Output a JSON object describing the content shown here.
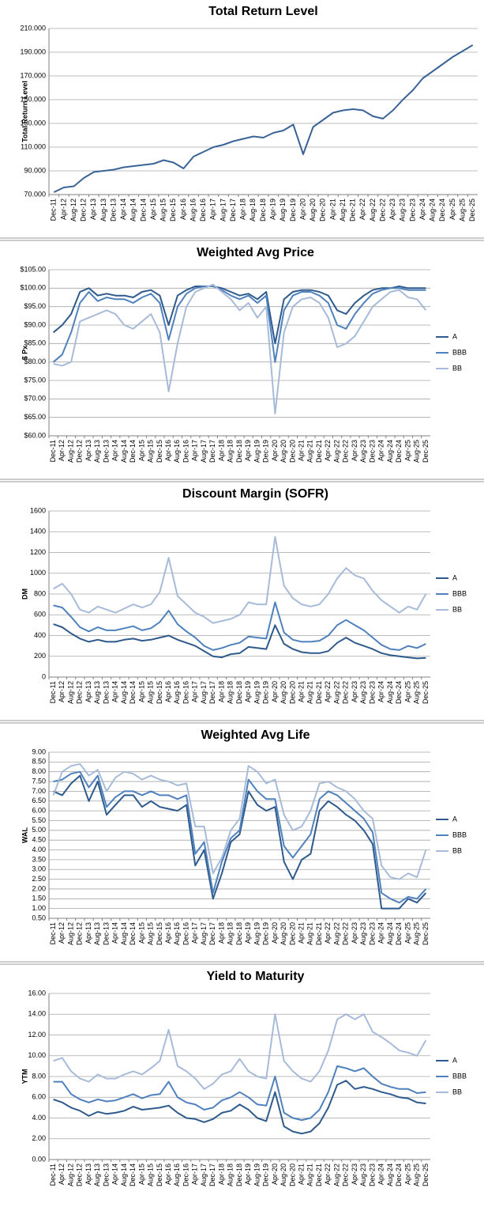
{
  "chart_data": [
    {
      "type": "line",
      "title": "Total Return Level",
      "ylabel": "Total Return Level",
      "categories": [
        "Dec-11",
        "Apr-12",
        "Aug-12",
        "Dec-12",
        "Apr-13",
        "Aug-13",
        "Dec-13",
        "Apr-14",
        "Aug-14",
        "Dec-14",
        "Apr-15",
        "Aug-15",
        "Dec-15",
        "Apr-16",
        "Aug-16",
        "Dec-16",
        "Apr-17",
        "Aug-17",
        "Dec-17",
        "Apr-18",
        "Aug-18",
        "Dec-18",
        "Apr-19",
        "Aug-19",
        "Dec-19",
        "Apr-20",
        "Aug-20",
        "Dec-20",
        "Apr-21",
        "Aug-21",
        "Dec-21",
        "Apr-22",
        "Aug-22",
        "Dec-22",
        "Apr-23",
        "Aug-23",
        "Dec-23",
        "Apr-24",
        "Aug-24",
        "Dec-24",
        "Apr-25",
        "Aug-25",
        "Dec-25"
      ],
      "series": [
        {
          "color": "#3a6396",
          "values": [
            72,
            76,
            77,
            84,
            89,
            90,
            91,
            93,
            94,
            95,
            96,
            99,
            97,
            92,
            102,
            106,
            110,
            112,
            115,
            117,
            119,
            118,
            122,
            124,
            129,
            104,
            127,
            133,
            139,
            141,
            142,
            141,
            136,
            134,
            141,
            150,
            158,
            168,
            174,
            180,
            186,
            191,
            196
          ]
        }
      ],
      "ylim": [
        70,
        210
      ],
      "yticks": [
        {
          "value": 70,
          "label": "70.000"
        },
        {
          "value": 90,
          "label": "90.000"
        },
        {
          "value": 110,
          "label": "110.000"
        },
        {
          "value": 130,
          "label": "130.000"
        },
        {
          "value": 150,
          "label": "150.000"
        },
        {
          "value": 170,
          "label": "170.000"
        },
        {
          "value": 190,
          "label": "190.000"
        },
        {
          "value": 210,
          "label": "210.000"
        }
      ],
      "grid": true
    },
    {
      "type": "line",
      "title": "Weighted Avg Price",
      "ylabel": "$ Px",
      "categories": [
        "Dec-11",
        "Apr-12",
        "Aug-12",
        "Dec-12",
        "Apr-13",
        "Aug-13",
        "Dec-13",
        "Apr-14",
        "Aug-14",
        "Dec-14",
        "Apr-15",
        "Aug-15",
        "Dec-15",
        "Apr-16",
        "Aug-16",
        "Dec-16",
        "Apr-17",
        "Aug-17",
        "Dec-17",
        "Apr-18",
        "Aug-18",
        "Dec-18",
        "Apr-19",
        "Aug-19",
        "Dec-19",
        "Apr-20",
        "Aug-20",
        "Dec-20",
        "Apr-21",
        "Aug-21",
        "Dec-21",
        "Apr-22",
        "Aug-22",
        "Dec-22",
        "Apr-23",
        "Aug-23",
        "Dec-23",
        "Apr-24",
        "Aug-24",
        "Dec-24",
        "Apr-25",
        "Aug-25",
        "Dec-25"
      ],
      "series": [
        {
          "name": "A",
          "color": "#2e5a8c",
          "values": [
            88,
            90,
            93,
            99,
            100,
            98,
            98.5,
            98,
            98,
            97.5,
            99,
            99.5,
            98,
            90,
            98,
            99.5,
            100.5,
            100.5,
            100.5,
            100,
            99,
            98,
            98.5,
            97,
            99,
            85,
            97,
            99,
            99.5,
            99.5,
            99,
            98,
            94,
            93,
            96,
            98,
            99.5,
            100,
            100,
            100.5,
            100,
            100,
            100
          ]
        },
        {
          "name": "BBB",
          "color": "#4f81bd",
          "values": [
            80,
            82,
            88,
            96,
            99,
            96.5,
            97.5,
            97,
            97,
            96,
            97.5,
            98.5,
            96,
            86,
            95,
            98.5,
            100,
            100.5,
            100.5,
            99.5,
            98,
            97,
            98,
            96,
            98,
            80,
            94,
            98,
            99,
            99,
            98,
            96,
            90,
            89,
            93,
            96,
            98.5,
            99.5,
            100,
            100,
            99.5,
            99.5,
            99.5
          ]
        },
        {
          "name": "BB",
          "color": "#a7bbd9",
          "values": [
            79.5,
            79,
            80,
            91,
            92,
            93,
            94,
            93,
            90,
            89,
            91,
            93,
            88,
            72,
            85,
            95,
            99,
            100,
            101,
            99,
            97,
            94,
            96,
            92,
            95,
            66,
            88,
            95,
            97,
            97.5,
            96,
            92,
            84,
            85,
            87,
            91,
            95,
            97,
            99,
            99.5,
            97.5,
            97,
            94
          ]
        }
      ],
      "ylim": [
        60,
        105
      ],
      "yticks": [
        {
          "value": 60,
          "label": "$60.00"
        },
        {
          "value": 65,
          "label": "$65.00"
        },
        {
          "value": 70,
          "label": "$70.00"
        },
        {
          "value": 75,
          "label": "$75.00"
        },
        {
          "value": 80,
          "label": "$80.00"
        },
        {
          "value": 85,
          "label": "$85.00"
        },
        {
          "value": 90,
          "label": "$90.00"
        },
        {
          "value": 95,
          "label": "$95.00"
        },
        {
          "value": 100,
          "label": "$100.00"
        },
        {
          "value": 105,
          "label": "$105.00"
        }
      ],
      "grid": true,
      "legend": "right"
    },
    {
      "type": "line",
      "title": "Discount Margin (SOFR)",
      "ylabel": "DM",
      "categories": [
        "Dec-11",
        "Apr-12",
        "Aug-12",
        "Dec-12",
        "Apr-13",
        "Aug-13",
        "Dec-13",
        "Apr-14",
        "Aug-14",
        "Dec-14",
        "Apr-15",
        "Aug-15",
        "Dec-15",
        "Apr-16",
        "Aug-16",
        "Dec-16",
        "Apr-17",
        "Aug-17",
        "Dec-17",
        "Apr-18",
        "Aug-18",
        "Dec-18",
        "Apr-19",
        "Aug-19",
        "Dec-19",
        "Apr-20",
        "Aug-20",
        "Dec-20",
        "Apr-21",
        "Aug-21",
        "Dec-21",
        "Apr-22",
        "Aug-22",
        "Dec-22",
        "Apr-23",
        "Aug-23",
        "Dec-23",
        "Apr-24",
        "Aug-24",
        "Dec-24",
        "Apr-25",
        "Aug-25",
        "Dec-25"
      ],
      "series": [
        {
          "name": "A",
          "color": "#2e5a8c",
          "values": [
            510,
            480,
            420,
            370,
            340,
            360,
            340,
            340,
            360,
            370,
            350,
            360,
            380,
            400,
            360,
            330,
            300,
            250,
            200,
            190,
            220,
            230,
            290,
            280,
            270,
            500,
            320,
            270,
            240,
            230,
            230,
            250,
            330,
            380,
            330,
            300,
            270,
            230,
            210,
            200,
            190,
            180,
            185
          ]
        },
        {
          "name": "BBB",
          "color": "#4f81bd",
          "values": [
            690,
            670,
            580,
            480,
            440,
            480,
            450,
            450,
            470,
            490,
            450,
            470,
            530,
            640,
            510,
            440,
            380,
            300,
            260,
            280,
            310,
            330,
            390,
            380,
            370,
            720,
            430,
            360,
            340,
            340,
            350,
            400,
            500,
            550,
            500,
            450,
            380,
            310,
            270,
            260,
            300,
            280,
            320
          ]
        },
        {
          "name": "BB",
          "color": "#a7bbd9",
          "values": [
            850,
            900,
            800,
            650,
            620,
            680,
            650,
            620,
            660,
            700,
            670,
            700,
            820,
            1150,
            780,
            700,
            620,
            580,
            520,
            540,
            560,
            600,
            720,
            700,
            700,
            1350,
            880,
            760,
            700,
            680,
            700,
            800,
            950,
            1050,
            980,
            950,
            830,
            740,
            680,
            620,
            680,
            650,
            800
          ]
        }
      ],
      "ylim": [
        0,
        1600
      ],
      "yticks": [
        0,
        200,
        400,
        600,
        800,
        1000,
        1200,
        1400,
        1600
      ],
      "grid": true,
      "legend": "right"
    },
    {
      "type": "line",
      "title": "Weighted Avg Life",
      "ylabel": "WAL",
      "categories": [
        "Dec-11",
        "Apr-12",
        "Aug-12",
        "Dec-12",
        "Apr-13",
        "Aug-13",
        "Dec-13",
        "Apr-14",
        "Aug-14",
        "Dec-14",
        "Apr-15",
        "Aug-15",
        "Dec-15",
        "Apr-16",
        "Aug-16",
        "Dec-16",
        "Apr-17",
        "Aug-17",
        "Dec-17",
        "Apr-18",
        "Aug-18",
        "Dec-18",
        "Apr-19",
        "Aug-19",
        "Dec-19",
        "Apr-20",
        "Aug-20",
        "Dec-20",
        "Apr-21",
        "Aug-21",
        "Dec-21",
        "Apr-22",
        "Aug-22",
        "Dec-22",
        "Apr-23",
        "Aug-23",
        "Dec-23",
        "Apr-24",
        "Aug-24",
        "Dec-24",
        "Apr-25",
        "Aug-25",
        "Dec-25"
      ],
      "series": [
        {
          "name": "A",
          "color": "#2e5a8c",
          "values": [
            7.0,
            6.8,
            7.4,
            7.8,
            6.5,
            7.5,
            5.8,
            6.3,
            6.8,
            6.8,
            6.2,
            6.5,
            6.2,
            6.1,
            6.0,
            6.3,
            3.2,
            4.0,
            1.5,
            2.8,
            4.4,
            4.8,
            7.0,
            6.3,
            6.0,
            6.2,
            3.4,
            2.5,
            3.5,
            3.8,
            6.0,
            6.5,
            6.2,
            5.8,
            5.5,
            5.0,
            4.3,
            1.0,
            1.0,
            1.0,
            1.5,
            1.3,
            1.8
          ]
        },
        {
          "name": "BBB",
          "color": "#4f81bd",
          "values": [
            7.5,
            7.6,
            7.9,
            8.0,
            7.2,
            7.8,
            6.2,
            6.7,
            7.0,
            7.0,
            6.8,
            7.0,
            6.8,
            6.8,
            6.6,
            6.8,
            3.8,
            4.4,
            1.8,
            3.4,
            4.6,
            5.0,
            7.6,
            7.0,
            6.6,
            6.6,
            4.2,
            3.6,
            4.2,
            4.8,
            6.6,
            7.0,
            6.8,
            6.4,
            6.0,
            5.6,
            4.9,
            1.8,
            1.5,
            1.3,
            1.6,
            1.5,
            2.0
          ]
        },
        {
          "name": "BB",
          "color": "#a7bbd9",
          "values": [
            6.8,
            8.0,
            8.3,
            8.4,
            7.8,
            8.1,
            7.0,
            7.7,
            8.0,
            7.9,
            7.6,
            7.8,
            7.6,
            7.5,
            7.3,
            7.4,
            5.2,
            5.2,
            2.8,
            3.6,
            5.0,
            5.6,
            8.3,
            8.0,
            7.4,
            7.6,
            5.8,
            5.0,
            5.2,
            6.0,
            7.4,
            7.5,
            7.2,
            7.0,
            6.6,
            6.0,
            5.6,
            3.2,
            2.6,
            2.5,
            2.8,
            2.6,
            4.0
          ]
        }
      ],
      "ylim": [
        0.5,
        9
      ],
      "yticks": [
        {
          "value": 0.5,
          "label": "0.50"
        },
        {
          "value": 1,
          "label": "1.00"
        },
        {
          "value": 1.5,
          "label": "1.50"
        },
        {
          "value": 2,
          "label": "2.00"
        },
        {
          "value": 2.5,
          "label": "2.50"
        },
        {
          "value": 3,
          "label": "3.00"
        },
        {
          "value": 3.5,
          "label": "3.50"
        },
        {
          "value": 4,
          "label": "4.00"
        },
        {
          "value": 4.5,
          "label": "4.50"
        },
        {
          "value": 5,
          "label": "5.00"
        },
        {
          "value": 5.5,
          "label": "5.50"
        },
        {
          "value": 6,
          "label": "6.00"
        },
        {
          "value": 6.5,
          "label": "6.50"
        },
        {
          "value": 7,
          "label": "7.00"
        },
        {
          "value": 7.5,
          "label": "7.50"
        },
        {
          "value": 8,
          "label": "8.00"
        },
        {
          "value": 8.5,
          "label": "8.50"
        },
        {
          "value": 9,
          "label": "9.00"
        }
      ],
      "grid": true,
      "legend": "right"
    },
    {
      "type": "line",
      "title": "Yield to Maturity",
      "ylabel": "YTM",
      "categories": [
        "Dec-11",
        "Apr-12",
        "Aug-12",
        "Dec-12",
        "Apr-13",
        "Aug-13",
        "Dec-13",
        "Apr-14",
        "Aug-14",
        "Dec-14",
        "Apr-15",
        "Aug-15",
        "Dec-15",
        "Apr-16",
        "Aug-16",
        "Dec-16",
        "Apr-17",
        "Aug-17",
        "Dec-17",
        "Apr-18",
        "Aug-18",
        "Dec-18",
        "Apr-19",
        "Aug-19",
        "Dec-19",
        "Apr-20",
        "Aug-20",
        "Dec-20",
        "Apr-21",
        "Aug-21",
        "Dec-21",
        "Apr-22",
        "Aug-22",
        "Dec-22",
        "Apr-23",
        "Aug-23",
        "Dec-23",
        "Apr-24",
        "Aug-24",
        "Dec-24",
        "Apr-25",
        "Aug-25",
        "Dec-25"
      ],
      "series": [
        {
          "name": "A",
          "color": "#2e5a8c",
          "values": [
            5.8,
            5.5,
            5.0,
            4.7,
            4.2,
            4.6,
            4.4,
            4.5,
            4.7,
            5.1,
            4.8,
            4.9,
            5.0,
            5.2,
            4.5,
            4.0,
            3.9,
            3.6,
            3.9,
            4.5,
            4.7,
            5.3,
            4.8,
            4.0,
            3.7,
            6.5,
            3.2,
            2.7,
            2.5,
            2.7,
            3.5,
            5.0,
            7.2,
            7.6,
            6.8,
            7.0,
            6.8,
            6.5,
            6.3,
            6.0,
            5.9,
            5.5,
            5.4
          ]
        },
        {
          "name": "BBB",
          "color": "#4f81bd",
          "values": [
            7.5,
            7.5,
            6.3,
            5.8,
            5.5,
            5.8,
            5.6,
            5.7,
            6.0,
            6.3,
            5.9,
            6.2,
            6.3,
            7.5,
            6.0,
            5.5,
            5.3,
            4.8,
            5.0,
            5.7,
            6.0,
            6.5,
            6.0,
            5.3,
            5.2,
            8.0,
            4.5,
            4.0,
            3.8,
            4.0,
            4.8,
            6.5,
            9.0,
            8.8,
            8.5,
            8.8,
            8.0,
            7.3,
            7.0,
            6.8,
            6.8,
            6.4,
            6.5
          ]
        },
        {
          "name": "BB",
          "color": "#a7bbd9",
          "values": [
            9.5,
            9.8,
            8.5,
            7.8,
            7.5,
            8.2,
            7.8,
            7.8,
            8.2,
            8.5,
            8.2,
            8.8,
            9.5,
            12.5,
            9.0,
            8.5,
            7.8,
            6.8,
            7.3,
            8.2,
            8.5,
            9.7,
            8.5,
            8.0,
            7.8,
            14.0,
            9.5,
            8.5,
            7.8,
            7.5,
            8.5,
            10.5,
            13.5,
            14.0,
            13.5,
            14.0,
            12.3,
            11.8,
            11.2,
            10.5,
            10.3,
            10.0,
            11.5
          ]
        }
      ],
      "ylim": [
        0,
        16
      ],
      "yticks": [
        {
          "value": 0,
          "label": "0.00"
        },
        {
          "value": 2,
          "label": "2.00"
        },
        {
          "value": 4,
          "label": "4.00"
        },
        {
          "value": 6,
          "label": "6.00"
        },
        {
          "value": 8,
          "label": "8.00"
        },
        {
          "value": 10,
          "label": "10.00"
        },
        {
          "value": 12,
          "label": "12.00"
        },
        {
          "value": 14,
          "label": "14.00"
        },
        {
          "value": 16,
          "label": "16.00"
        }
      ],
      "grid": true,
      "legend": "right"
    }
  ]
}
